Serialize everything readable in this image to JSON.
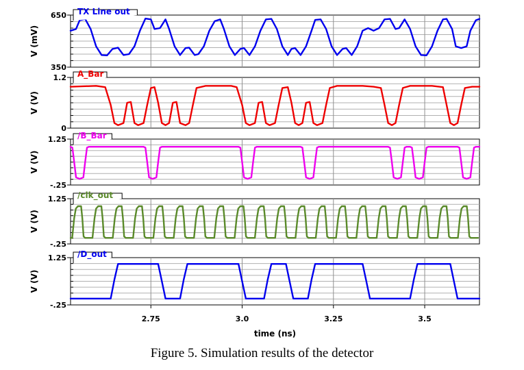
{
  "figure": {
    "caption": "Figure 5. Simulation results of the detector"
  },
  "chart_data": {
    "type": "line",
    "xlabel": "time (ns)",
    "xlim": [
      2.53,
      3.65
    ],
    "xticks": [
      "2.75",
      "3.0",
      "3.25",
      "3.5"
    ],
    "xtick_values": [
      2.75,
      3.0,
      3.25,
      3.5
    ],
    "grid": true,
    "panels": [
      {
        "name": "TX Line out",
        "ylabel": "V (mV)",
        "ylim": [
          350,
          650
        ],
        "yticks": [
          "650",
          "350"
        ],
        "color": "#0000ee",
        "points": [
          [
            2.53,
            560
          ],
          [
            2.545,
            570
          ],
          [
            2.555,
            620
          ],
          [
            2.57,
            628
          ],
          [
            2.585,
            570
          ],
          [
            2.6,
            470
          ],
          [
            2.615,
            420
          ],
          [
            2.63,
            418
          ],
          [
            2.645,
            455
          ],
          [
            2.66,
            462
          ],
          [
            2.675,
            420
          ],
          [
            2.69,
            425
          ],
          [
            2.705,
            470
          ],
          [
            2.72,
            560
          ],
          [
            2.735,
            630
          ],
          [
            2.75,
            625
          ],
          [
            2.76,
            570
          ],
          [
            2.775,
            575
          ],
          [
            2.79,
            625
          ],
          [
            2.8,
            570
          ],
          [
            2.815,
            470
          ],
          [
            2.83,
            420
          ],
          [
            2.845,
            460
          ],
          [
            2.855,
            462
          ],
          [
            2.87,
            420
          ],
          [
            2.88,
            425
          ],
          [
            2.895,
            470
          ],
          [
            2.91,
            560
          ],
          [
            2.925,
            615
          ],
          [
            2.94,
            625
          ],
          [
            2.95,
            570
          ],
          [
            2.965,
            470
          ],
          [
            2.98,
            420
          ],
          [
            2.995,
            455
          ],
          [
            3.005,
            460
          ],
          [
            3.02,
            420
          ],
          [
            3.035,
            470
          ],
          [
            3.05,
            560
          ],
          [
            3.065,
            625
          ],
          [
            3.08,
            628
          ],
          [
            3.095,
            570
          ],
          [
            3.11,
            470
          ],
          [
            3.125,
            420
          ],
          [
            3.135,
            455
          ],
          [
            3.145,
            460
          ],
          [
            3.16,
            420
          ],
          [
            3.175,
            470
          ],
          [
            3.19,
            560
          ],
          [
            3.2,
            622
          ],
          [
            3.215,
            625
          ],
          [
            3.23,
            570
          ],
          [
            3.245,
            470
          ],
          [
            3.26,
            420
          ],
          [
            3.275,
            455
          ],
          [
            3.285,
            460
          ],
          [
            3.3,
            420
          ],
          [
            3.315,
            470
          ],
          [
            3.33,
            560
          ],
          [
            3.345,
            575
          ],
          [
            3.36,
            560
          ],
          [
            3.375,
            575
          ],
          [
            3.39,
            625
          ],
          [
            3.405,
            628
          ],
          [
            3.42,
            570
          ],
          [
            3.43,
            575
          ],
          [
            3.445,
            625
          ],
          [
            3.46,
            570
          ],
          [
            3.475,
            470
          ],
          [
            3.49,
            420
          ],
          [
            3.505,
            418
          ],
          [
            3.52,
            470
          ],
          [
            3.535,
            560
          ],
          [
            3.55,
            625
          ],
          [
            3.56,
            628
          ],
          [
            3.575,
            570
          ],
          [
            3.585,
            470
          ],
          [
            3.6,
            460
          ],
          [
            3.615,
            470
          ],
          [
            3.625,
            560
          ],
          [
            3.64,
            620
          ],
          [
            3.65,
            628
          ]
        ]
      },
      {
        "name": "A_Bar",
        "ylabel": "V (V)",
        "ylim": [
          0,
          1.2
        ],
        "yticks": [
          "1.2",
          "0"
        ],
        "color": "#ee0000",
        "points": [
          [
            2.53,
            0.98
          ],
          [
            2.6,
            1.0
          ],
          [
            2.625,
            0.97
          ],
          [
            2.64,
            0.55
          ],
          [
            2.65,
            0.12
          ],
          [
            2.66,
            0.07
          ],
          [
            2.675,
            0.12
          ],
          [
            2.685,
            0.6
          ],
          [
            2.695,
            0.62
          ],
          [
            2.705,
            0.12
          ],
          [
            2.715,
            0.07
          ],
          [
            2.73,
            0.12
          ],
          [
            2.74,
            0.55
          ],
          [
            2.75,
            0.95
          ],
          [
            2.76,
            0.97
          ],
          [
            2.77,
            0.6
          ],
          [
            2.78,
            0.12
          ],
          [
            2.79,
            0.07
          ],
          [
            2.8,
            0.12
          ],
          [
            2.81,
            0.6
          ],
          [
            2.82,
            0.62
          ],
          [
            2.83,
            0.12
          ],
          [
            2.845,
            0.07
          ],
          [
            2.855,
            0.12
          ],
          [
            2.865,
            0.55
          ],
          [
            2.875,
            0.95
          ],
          [
            2.9,
            1.0
          ],
          [
            2.97,
            1.0
          ],
          [
            2.985,
            0.97
          ],
          [
            3.0,
            0.55
          ],
          [
            3.01,
            0.12
          ],
          [
            3.02,
            0.07
          ],
          [
            3.035,
            0.12
          ],
          [
            3.045,
            0.6
          ],
          [
            3.055,
            0.62
          ],
          [
            3.065,
            0.12
          ],
          [
            3.075,
            0.07
          ],
          [
            3.09,
            0.12
          ],
          [
            3.1,
            0.55
          ],
          [
            3.11,
            0.95
          ],
          [
            3.125,
            0.97
          ],
          [
            3.135,
            0.6
          ],
          [
            3.145,
            0.12
          ],
          [
            3.155,
            0.07
          ],
          [
            3.165,
            0.12
          ],
          [
            3.175,
            0.6
          ],
          [
            3.185,
            0.62
          ],
          [
            3.195,
            0.12
          ],
          [
            3.205,
            0.07
          ],
          [
            3.22,
            0.12
          ],
          [
            3.23,
            0.55
          ],
          [
            3.24,
            0.95
          ],
          [
            3.26,
            1.0
          ],
          [
            3.33,
            1.0
          ],
          [
            3.36,
            0.98
          ],
          [
            3.38,
            0.95
          ],
          [
            3.39,
            0.55
          ],
          [
            3.4,
            0.12
          ],
          [
            3.41,
            0.07
          ],
          [
            3.42,
            0.12
          ],
          [
            3.43,
            0.55
          ],
          [
            3.44,
            0.95
          ],
          [
            3.46,
            1.0
          ],
          [
            3.52,
            1.0
          ],
          [
            3.55,
            0.97
          ],
          [
            3.56,
            0.55
          ],
          [
            3.57,
            0.12
          ],
          [
            3.58,
            0.07
          ],
          [
            3.59,
            0.12
          ],
          [
            3.6,
            0.55
          ],
          [
            3.61,
            0.95
          ],
          [
            3.63,
            0.98
          ],
          [
            3.65,
            0.98
          ]
        ]
      },
      {
        "name": "/B_Bar",
        "ylabel": "V (V)",
        "ylim": [
          -0.25,
          1.25
        ],
        "yticks": [
          "1.25",
          "-.25"
        ],
        "color": "#ee00ee",
        "points": [
          [
            2.53,
            1.0
          ],
          [
            2.535,
            0.97
          ],
          [
            2.54,
            0.5
          ],
          [
            2.545,
            0.0
          ],
          [
            2.555,
            -0.05
          ],
          [
            2.565,
            0.0
          ],
          [
            2.57,
            0.5
          ],
          [
            2.575,
            0.97
          ],
          [
            2.58,
            1.0
          ],
          [
            2.73,
            1.0
          ],
          [
            2.735,
            0.97
          ],
          [
            2.74,
            0.5
          ],
          [
            2.745,
            0.0
          ],
          [
            2.755,
            -0.05
          ],
          [
            2.765,
            0.0
          ],
          [
            2.77,
            0.5
          ],
          [
            2.775,
            0.97
          ],
          [
            2.78,
            1.0
          ],
          [
            2.99,
            1.0
          ],
          [
            2.995,
            0.97
          ],
          [
            3.0,
            0.5
          ],
          [
            3.005,
            0.0
          ],
          [
            3.015,
            -0.05
          ],
          [
            3.025,
            0.0
          ],
          [
            3.03,
            0.5
          ],
          [
            3.035,
            0.97
          ],
          [
            3.04,
            1.0
          ],
          [
            3.16,
            1.0
          ],
          [
            3.165,
            0.97
          ],
          [
            3.17,
            0.5
          ],
          [
            3.175,
            0.0
          ],
          [
            3.185,
            -0.05
          ],
          [
            3.195,
            0.0
          ],
          [
            3.2,
            0.5
          ],
          [
            3.205,
            0.97
          ],
          [
            3.21,
            1.0
          ],
          [
            3.4,
            1.0
          ],
          [
            3.405,
            0.97
          ],
          [
            3.41,
            0.5
          ],
          [
            3.415,
            0.0
          ],
          [
            3.425,
            -0.05
          ],
          [
            3.435,
            0.0
          ],
          [
            3.44,
            0.5
          ],
          [
            3.445,
            0.97
          ],
          [
            3.45,
            1.0
          ],
          [
            3.46,
            1.0
          ],
          [
            3.465,
            0.97
          ],
          [
            3.47,
            0.5
          ],
          [
            3.475,
            0.0
          ],
          [
            3.485,
            -0.05
          ],
          [
            3.495,
            0.0
          ],
          [
            3.5,
            0.5
          ],
          [
            3.505,
            0.97
          ],
          [
            3.51,
            1.0
          ],
          [
            3.59,
            1.0
          ],
          [
            3.595,
            0.97
          ],
          [
            3.6,
            0.5
          ],
          [
            3.605,
            0.0
          ],
          [
            3.615,
            -0.05
          ],
          [
            3.625,
            0.0
          ],
          [
            3.63,
            0.5
          ],
          [
            3.635,
            0.97
          ],
          [
            3.64,
            1.0
          ],
          [
            3.65,
            1.0
          ]
        ]
      },
      {
        "name": "/clk_out",
        "ylabel": "V (V)",
        "ylim": [
          -0.25,
          1.25
        ],
        "yticks": [
          "1.25",
          "-.25"
        ],
        "color": "#5a8a2a",
        "period": 0.0556,
        "phase": 2.53,
        "high": 1.0,
        "low": -0.05
      },
      {
        "name": "/D_out",
        "ylabel": "V (V)",
        "ylim": [
          -0.25,
          1.25
        ],
        "yticks": [
          "1.25",
          "-.25"
        ],
        "color": "#0000ee",
        "points": [
          [
            2.53,
            -0.05
          ],
          [
            2.64,
            -0.05
          ],
          [
            2.65,
            0.55
          ],
          [
            2.66,
            1.05
          ],
          [
            2.77,
            1.05
          ],
          [
            2.78,
            0.5
          ],
          [
            2.79,
            -0.05
          ],
          [
            2.83,
            -0.05
          ],
          [
            2.84,
            0.55
          ],
          [
            2.85,
            1.05
          ],
          [
            2.99,
            1.05
          ],
          [
            3.0,
            0.5
          ],
          [
            3.01,
            -0.05
          ],
          [
            3.06,
            -0.05
          ],
          [
            3.07,
            0.55
          ],
          [
            3.08,
            1.05
          ],
          [
            3.12,
            1.05
          ],
          [
            3.13,
            0.5
          ],
          [
            3.14,
            -0.05
          ],
          [
            3.18,
            -0.05
          ],
          [
            3.19,
            0.55
          ],
          [
            3.2,
            1.05
          ],
          [
            3.33,
            1.05
          ],
          [
            3.34,
            0.5
          ],
          [
            3.35,
            -0.05
          ],
          [
            3.46,
            -0.05
          ],
          [
            3.47,
            0.55
          ],
          [
            3.48,
            1.05
          ],
          [
            3.57,
            1.05
          ],
          [
            3.58,
            0.5
          ],
          [
            3.59,
            -0.05
          ],
          [
            3.65,
            -0.05
          ]
        ]
      }
    ]
  }
}
